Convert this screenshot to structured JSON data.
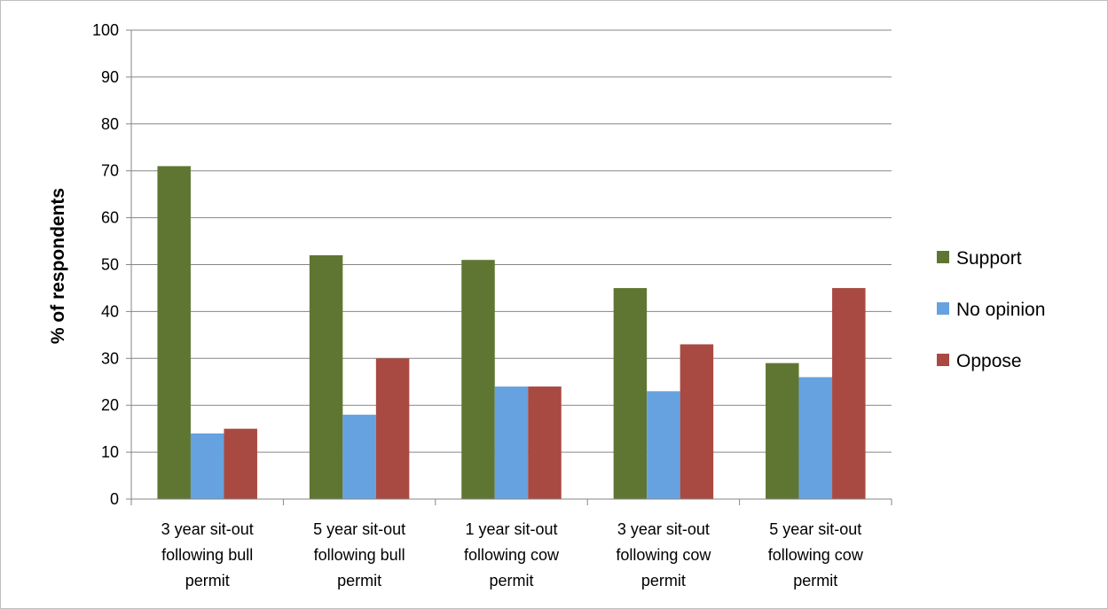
{
  "chart_data": {
    "type": "bar",
    "title": "",
    "xlabel": "",
    "ylabel": "% of respondents",
    "ylim": [
      0,
      100
    ],
    "yticks": [
      0,
      10,
      20,
      30,
      40,
      50,
      60,
      70,
      80,
      90,
      100
    ],
    "categories": [
      [
        "3 year sit-out",
        "following bull",
        "permit"
      ],
      [
        "5 year sit-out",
        "following bull",
        "permit"
      ],
      [
        "1 year sit-out",
        "following cow",
        "permit"
      ],
      [
        "3 year sit-out",
        "following cow",
        "permit"
      ],
      [
        "5 year sit-out",
        "following cow",
        "permit"
      ]
    ],
    "series": [
      {
        "name": "Support",
        "color": "#5f7632",
        "values": [
          71,
          52,
          51,
          45,
          29
        ]
      },
      {
        "name": "No opinion",
        "color": "#66a2e0",
        "values": [
          14,
          18,
          24,
          23,
          26
        ]
      },
      {
        "name": "Oppose",
        "color": "#a84a42",
        "values": [
          15,
          30,
          24,
          33,
          45
        ]
      }
    ],
    "grid": true,
    "legend_position": "right"
  }
}
